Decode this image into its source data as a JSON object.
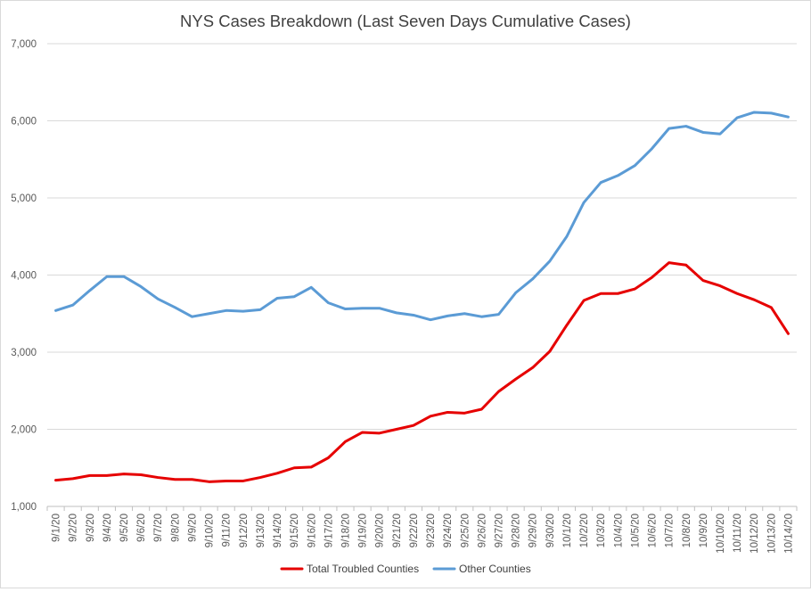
{
  "chart_data": {
    "type": "line",
    "title": "NYS Cases Breakdown (Last Seven Days Cumulative Cases)",
    "xlabel": "",
    "ylabel": "",
    "ylim": [
      1000,
      7000
    ],
    "yticks": [
      1000,
      2000,
      3000,
      4000,
      5000,
      6000,
      7000
    ],
    "ytick_labels": [
      "1,000",
      "2,000",
      "3,000",
      "4,000",
      "5,000",
      "6,000",
      "7,000"
    ],
    "grid": true,
    "legend_position": "bottom",
    "categories": [
      "9/1/20",
      "9/2/20",
      "9/3/20",
      "9/4/20",
      "9/5/20",
      "9/6/20",
      "9/7/20",
      "9/8/20",
      "9/9/20",
      "9/10/20",
      "9/11/20",
      "9/12/20",
      "9/13/20",
      "9/14/20",
      "9/15/20",
      "9/16/20",
      "9/17/20",
      "9/18/20",
      "9/19/20",
      "9/20/20",
      "9/21/20",
      "9/22/20",
      "9/23/20",
      "9/24/20",
      "9/25/20",
      "9/26/20",
      "9/27/20",
      "9/28/20",
      "9/29/20",
      "9/30/20",
      "10/1/20",
      "10/2/20",
      "10/3/20",
      "10/4/20",
      "10/5/20",
      "10/6/20",
      "10/7/20",
      "10/8/20",
      "10/9/20",
      "10/10/20",
      "10/11/20",
      "10/12/20",
      "10/13/20",
      "10/14/20"
    ],
    "series": [
      {
        "name": "Total Troubled Counties",
        "color": "#e60000",
        "values": [
          1340,
          1360,
          1400,
          1400,
          1420,
          1410,
          1375,
          1350,
          1350,
          1320,
          1330,
          1330,
          1375,
          1430,
          1500,
          1510,
          1630,
          1840,
          1960,
          1950,
          2000,
          2050,
          2170,
          2220,
          2210,
          2260,
          2490,
          2650,
          2800,
          3010,
          3350,
          3670,
          3760,
          3760,
          3820,
          3970,
          4160,
          4130,
          3930,
          3860,
          3760,
          3680,
          3580,
          3240
        ]
      },
      {
        "name": "Other Counties",
        "color": "#5b9bd5",
        "values": [
          3540,
          3610,
          3800,
          3980,
          3980,
          3850,
          3690,
          3580,
          3460,
          3500,
          3540,
          3530,
          3550,
          3700,
          3720,
          3840,
          3640,
          3560,
          3570,
          3570,
          3510,
          3480,
          3420,
          3470,
          3500,
          3460,
          3490,
          3770,
          3950,
          4180,
          4500,
          4940,
          5200,
          5290,
          5420,
          5640,
          5900,
          5930,
          5850,
          5830,
          6040,
          6110,
          6100,
          6050
        ]
      }
    ]
  }
}
